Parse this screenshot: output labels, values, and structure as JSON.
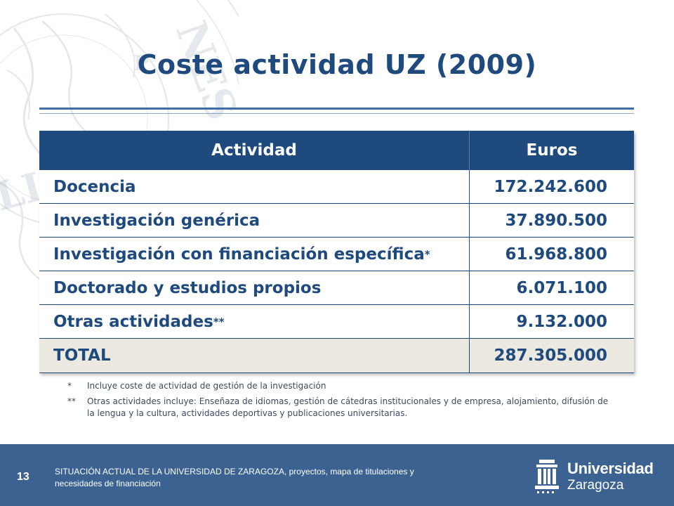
{
  "title": "Coste actividad UZ (2009)",
  "table": {
    "headers": {
      "activity": "Actividad",
      "euros": "Euros"
    },
    "rows": [
      {
        "activity": "Docencia",
        "mark": "",
        "euros": "172.242.600"
      },
      {
        "activity": "Investigación genérica",
        "mark": "",
        "euros": "37.890.500"
      },
      {
        "activity": "Investigación con financiación específica",
        "mark": "*",
        "euros": "61.968.800"
      },
      {
        "activity": "Doctorado y estudios propios",
        "mark": "",
        "euros": "6.071.100"
      },
      {
        "activity": "Otras actividades",
        "mark": "**",
        "euros": "9.132.000"
      }
    ],
    "total": {
      "activity": "TOTAL",
      "euros": "287.305.000"
    }
  },
  "notes": [
    {
      "mark": "*",
      "text": "Incluye coste de actividad de gestión de la investigación"
    },
    {
      "mark": "**",
      "text": "Otras actividades incluye: Enseñaza de idiomas, gestión de cátedras institucionales y de empresa, alojamiento, difusión de la lengua y la cultura, actividades deportivas y publicaciones universitarias."
    }
  ],
  "footer": {
    "page_number": "13",
    "text": "SITUACIÓN ACTUAL DE LA UNIVERSIDAD DE ZARAGOZA, proyectos, mapa de titulaciones y necesidades de financiación",
    "logo_name": "Universidad",
    "logo_sub": "Zaragoza"
  },
  "colors": {
    "brand_blue": "#1f4a7e",
    "footer_blue": "#3b6290",
    "total_row": "#ece9e1"
  }
}
